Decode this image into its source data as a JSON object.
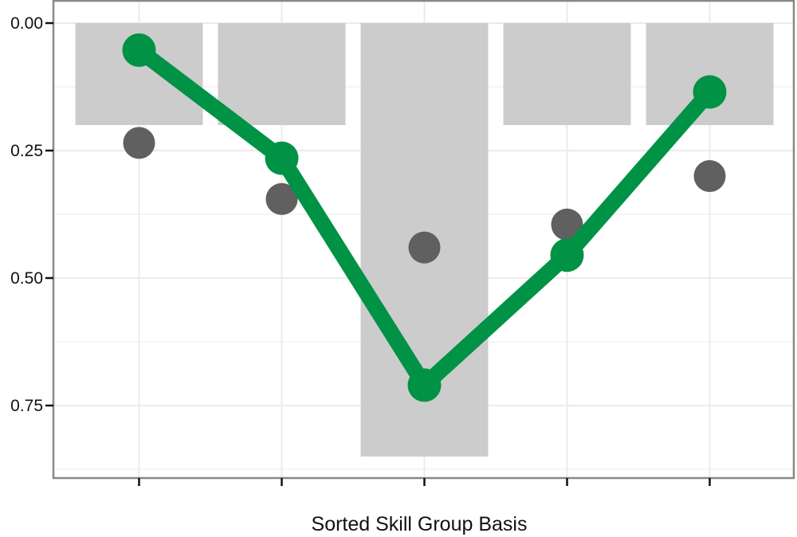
{
  "chart_data": {
    "type": "bar",
    "xlabel": "Sorted Skill Group Basis",
    "ylabel": "",
    "y_axis_inverted": true,
    "ylim": [
      0,
      0.895
    ],
    "y_ticks": [
      0.0,
      0.25,
      0.5,
      0.75
    ],
    "y_tick_labels": [
      "0.00",
      "0.25",
      "0.50",
      "0.75"
    ],
    "x_tick_labels": [
      "",
      "",
      "",
      "",
      ""
    ],
    "categories": [
      1,
      2,
      3,
      4,
      5
    ],
    "grid": true,
    "series": [
      {
        "kind": "bar",
        "values": [
          0.2,
          0.2,
          0.85,
          0.2,
          0.2
        ]
      },
      {
        "kind": "points",
        "values": [
          0.235,
          0.345,
          0.44,
          0.395,
          0.3
        ]
      },
      {
        "kind": "line",
        "values": [
          0.053,
          0.265,
          0.71,
          0.455,
          0.135
        ]
      }
    ],
    "colors": {
      "bars": "#cccccc",
      "points": "#606060",
      "line": "#009245",
      "grid": "#ebebeb",
      "frame": "#888888",
      "text": "#111111"
    }
  }
}
